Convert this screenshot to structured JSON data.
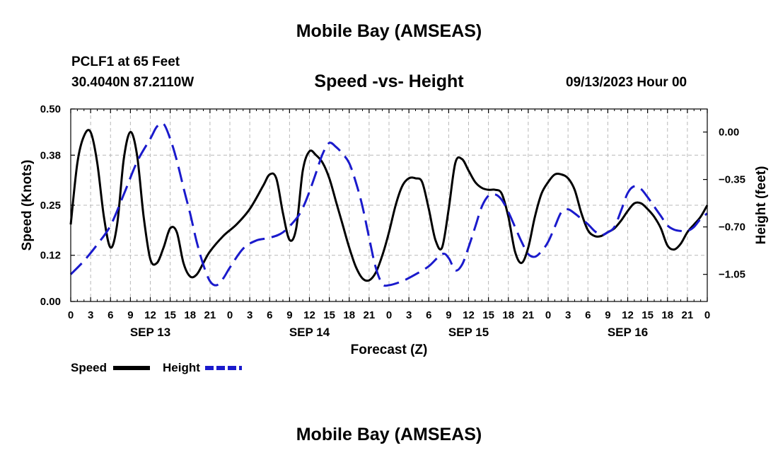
{
  "header": {
    "title": "Mobile Bay (AMSEAS)",
    "station": "PCLF1 at 65 Feet",
    "coords": "30.4040N  87.2110W",
    "subtitle": "Speed -vs- Height",
    "datetime": "09/13/2023 Hour 00"
  },
  "footer": {
    "title": "Mobile Bay (AMSEAS)"
  },
  "chart_data": {
    "type": "line",
    "xlabel": "Forecast (Z)",
    "ylabel_left": "Speed (Knots)",
    "ylabel_right": "Height (feet)",
    "x_unit": "forecast hour",
    "xlim": [
      0,
      96
    ],
    "ylim_left": [
      0,
      0.5
    ],
    "ylim_right": [
      -1.25,
      0.17
    ],
    "x_ticks": [
      0,
      3,
      6,
      9,
      12,
      15,
      18,
      21,
      24,
      27,
      30,
      33,
      36,
      39,
      42,
      45,
      48,
      51,
      54,
      57,
      60,
      63,
      66,
      69,
      72,
      75,
      78,
      81,
      84,
      87,
      90,
      93,
      96
    ],
    "x_tick_labels": [
      "0",
      "3",
      "6",
      "9",
      "12",
      "15",
      "18",
      "21",
      "0",
      "3",
      "6",
      "9",
      "12",
      "15",
      "18",
      "21",
      "0",
      "3",
      "6",
      "9",
      "12",
      "15",
      "18",
      "21",
      "0",
      "3",
      "6",
      "9",
      "12",
      "15",
      "18",
      "21",
      "0"
    ],
    "day_labels": [
      {
        "x": 12,
        "label": "SEP 13"
      },
      {
        "x": 36,
        "label": "SEP 14"
      },
      {
        "x": 60,
        "label": "SEP 15"
      },
      {
        "x": 84,
        "label": "SEP 16"
      }
    ],
    "y_left_ticks": [
      0.0,
      0.12,
      0.25,
      0.38,
      0.5
    ],
    "y_left_tick_labels": [
      "0.00",
      "0.12",
      "0.25",
      "0.38",
      "0.50"
    ],
    "y_right_ticks": [
      0.0,
      -0.35,
      -0.7,
      -1.05
    ],
    "y_right_tick_labels": [
      "0.00",
      "−0.35",
      "−0.70",
      "−1.05"
    ],
    "grid": true,
    "legend": "bottom-left",
    "series": [
      {
        "name": "Speed",
        "axis": "left",
        "color": "#000000",
        "style": "solid",
        "points": [
          [
            0,
            0.2
          ],
          [
            1,
            0.36
          ],
          [
            2,
            0.43
          ],
          [
            3,
            0.44
          ],
          [
            4,
            0.36
          ],
          [
            5,
            0.22
          ],
          [
            6,
            0.14
          ],
          [
            7,
            0.2
          ],
          [
            8,
            0.37
          ],
          [
            9,
            0.44
          ],
          [
            10,
            0.38
          ],
          [
            11,
            0.22
          ],
          [
            12,
            0.11
          ],
          [
            13,
            0.1
          ],
          [
            14,
            0.14
          ],
          [
            15,
            0.19
          ],
          [
            16,
            0.18
          ],
          [
            17,
            0.1
          ],
          [
            18,
            0.065
          ],
          [
            19,
            0.07
          ],
          [
            20,
            0.1
          ],
          [
            21,
            0.13
          ],
          [
            23,
            0.17
          ],
          [
            25,
            0.2
          ],
          [
            27,
            0.24
          ],
          [
            29,
            0.3
          ],
          [
            30,
            0.33
          ],
          [
            31,
            0.32
          ],
          [
            32,
            0.23
          ],
          [
            33,
            0.16
          ],
          [
            34,
            0.19
          ],
          [
            35,
            0.34
          ],
          [
            36,
            0.39
          ],
          [
            37,
            0.38
          ],
          [
            38,
            0.36
          ],
          [
            39,
            0.32
          ],
          [
            40,
            0.26
          ],
          [
            41,
            0.2
          ],
          [
            42,
            0.14
          ],
          [
            43,
            0.09
          ],
          [
            44,
            0.06
          ],
          [
            45,
            0.055
          ],
          [
            46,
            0.075
          ],
          [
            47,
            0.12
          ],
          [
            48,
            0.18
          ],
          [
            49,
            0.25
          ],
          [
            50,
            0.3
          ],
          [
            51,
            0.32
          ],
          [
            52,
            0.32
          ],
          [
            53,
            0.31
          ],
          [
            54,
            0.24
          ],
          [
            55,
            0.16
          ],
          [
            56,
            0.14
          ],
          [
            57,
            0.24
          ],
          [
            58,
            0.36
          ],
          [
            59,
            0.37
          ],
          [
            60,
            0.34
          ],
          [
            61,
            0.31
          ],
          [
            62,
            0.295
          ],
          [
            63,
            0.29
          ],
          [
            64,
            0.29
          ],
          [
            65,
            0.28
          ],
          [
            66,
            0.22
          ],
          [
            67,
            0.13
          ],
          [
            68,
            0.1
          ],
          [
            69,
            0.14
          ],
          [
            70,
            0.22
          ],
          [
            71,
            0.28
          ],
          [
            72,
            0.31
          ],
          [
            73,
            0.33
          ],
          [
            74,
            0.33
          ],
          [
            75,
            0.32
          ],
          [
            76,
            0.29
          ],
          [
            77,
            0.23
          ],
          [
            78,
            0.185
          ],
          [
            79,
            0.17
          ],
          [
            80,
            0.17
          ],
          [
            81,
            0.18
          ],
          [
            82,
            0.19
          ],
          [
            83,
            0.21
          ],
          [
            84,
            0.235
          ],
          [
            85,
            0.255
          ],
          [
            86,
            0.255
          ],
          [
            87,
            0.24
          ],
          [
            88,
            0.22
          ],
          [
            89,
            0.19
          ],
          [
            90,
            0.145
          ],
          [
            91,
            0.135
          ],
          [
            92,
            0.15
          ],
          [
            93,
            0.18
          ],
          [
            94,
            0.2
          ],
          [
            95,
            0.22
          ],
          [
            96,
            0.25
          ]
        ]
      },
      {
        "name": "Height",
        "axis": "right",
        "color": "#1a1acc",
        "style": "dashed",
        "points": [
          [
            0,
            -1.05
          ],
          [
            2,
            -0.95
          ],
          [
            4,
            -0.83
          ],
          [
            6,
            -0.69
          ],
          [
            8,
            -0.46
          ],
          [
            10,
            -0.22
          ],
          [
            12,
            -0.05
          ],
          [
            13,
            0.04
          ],
          [
            14,
            0.06
          ],
          [
            15,
            -0.05
          ],
          [
            16,
            -0.21
          ],
          [
            17,
            -0.41
          ],
          [
            18,
            -0.6
          ],
          [
            19,
            -0.81
          ],
          [
            20,
            -0.98
          ],
          [
            21,
            -1.1
          ],
          [
            22,
            -1.13
          ],
          [
            23,
            -1.08
          ],
          [
            24,
            -1.0
          ],
          [
            26,
            -0.86
          ],
          [
            28,
            -0.8
          ],
          [
            30,
            -0.78
          ],
          [
            32,
            -0.74
          ],
          [
            34,
            -0.64
          ],
          [
            35,
            -0.56
          ],
          [
            36,
            -0.44
          ],
          [
            37,
            -0.3
          ],
          [
            38,
            -0.16
          ],
          [
            39,
            -0.08
          ],
          [
            40,
            -0.11
          ],
          [
            41,
            -0.16
          ],
          [
            42,
            -0.23
          ],
          [
            43,
            -0.37
          ],
          [
            44,
            -0.55
          ],
          [
            45,
            -0.78
          ],
          [
            46,
            -1.0
          ],
          [
            47,
            -1.12
          ],
          [
            48,
            -1.13
          ],
          [
            50,
            -1.1
          ],
          [
            52,
            -1.05
          ],
          [
            54,
            -0.99
          ],
          [
            56,
            -0.9
          ],
          [
            57,
            -0.93
          ],
          [
            58,
            -1.02
          ],
          [
            59,
            -0.98
          ],
          [
            60,
            -0.85
          ],
          [
            61,
            -0.7
          ],
          [
            62,
            -0.55
          ],
          [
            63,
            -0.47
          ],
          [
            64,
            -0.46
          ],
          [
            65,
            -0.5
          ],
          [
            66,
            -0.59
          ],
          [
            67,
            -0.7
          ],
          [
            68,
            -0.81
          ],
          [
            69,
            -0.9
          ],
          [
            70,
            -0.92
          ],
          [
            71,
            -0.88
          ],
          [
            72,
            -0.81
          ],
          [
            73,
            -0.7
          ],
          [
            74,
            -0.59
          ],
          [
            75,
            -0.57
          ],
          [
            76,
            -0.6
          ],
          [
            77,
            -0.64
          ],
          [
            78,
            -0.68
          ],
          [
            79,
            -0.73
          ],
          [
            80,
            -0.76
          ],
          [
            81,
            -0.74
          ],
          [
            82,
            -0.7
          ],
          [
            83,
            -0.58
          ],
          [
            84,
            -0.45
          ],
          [
            85,
            -0.4
          ],
          [
            86,
            -0.42
          ],
          [
            87,
            -0.48
          ],
          [
            88,
            -0.55
          ],
          [
            89,
            -0.62
          ],
          [
            90,
            -0.69
          ],
          [
            91,
            -0.72
          ],
          [
            92,
            -0.73
          ],
          [
            93,
            -0.73
          ],
          [
            94,
            -0.7
          ],
          [
            95,
            -0.64
          ],
          [
            96,
            -0.6
          ]
        ]
      }
    ]
  }
}
